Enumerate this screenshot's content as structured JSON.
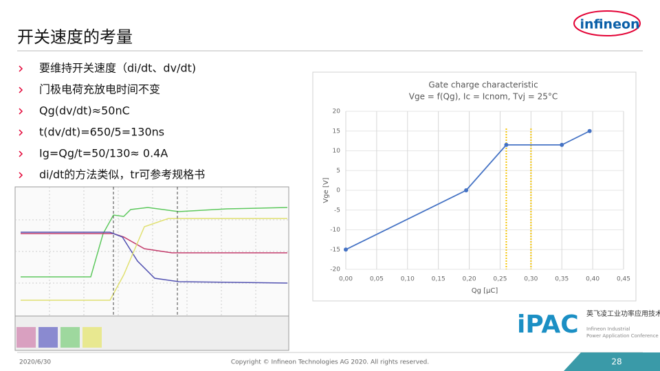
{
  "header": {
    "title": "开关速度的考量",
    "logo": "infineon"
  },
  "bullets": [
    "要维持开关速度（di/dt、dv/dt)",
    "门极电荷充放电时间不变",
    "Qg(dv/dt)≈50nC",
    "t(dv/dt)=650/5=130ns",
    "Ig=Qg/t=50/130≈ 0.4A",
    "di/dt的方法类似，tr可参考规格书"
  ],
  "chart_data": {
    "type": "line",
    "title": "Gate charge characteristic",
    "subtitle": "Vge = f(Qg), Ic = Icnom, Tvj = 25°C",
    "x_label": "Qg [μC]",
    "y_label": "Vge [V]",
    "x": [
      0,
      0.195,
      0.26,
      0.35,
      0.395
    ],
    "values": [
      -15,
      0,
      11.5,
      11.5,
      15
    ],
    "color": "#4472c4",
    "xlim": [
      0,
      0.45
    ],
    "xticks": [
      {
        "value": 0,
        "label": "0,00"
      },
      {
        "value": 0.05,
        "label": "0,05"
      },
      {
        "value": 0.1,
        "label": "0,10"
      },
      {
        "value": 0.15,
        "label": "0,15"
      },
      {
        "value": 0.2,
        "label": "0,20"
      },
      {
        "value": 0.25,
        "label": "0,25"
      },
      {
        "value": 0.3,
        "label": "0,30"
      },
      {
        "value": 0.35,
        "label": "0,35"
      },
      {
        "value": 0.4,
        "label": "0,40"
      },
      {
        "value": 0.45,
        "label": "0,45"
      }
    ],
    "ylim": [
      -20,
      20
    ],
    "yticks": [
      -20,
      -15,
      -10,
      -5,
      0,
      5,
      10,
      15,
      20
    ],
    "grid": true,
    "reference_lines": {
      "x": [
        0.26,
        0.3
      ],
      "color": "#f5c400"
    }
  },
  "ipac": {
    "name": "iPAC",
    "cn": "英飞凌工业功率应用技术大会",
    "en1": "Infineon Industrial",
    "en2": "Power Application Conference"
  },
  "footer": {
    "date": "2020/6/30",
    "copyright": "Copyright © Infineon Technologies AG 2020. All rights reserved.",
    "page": "28"
  }
}
